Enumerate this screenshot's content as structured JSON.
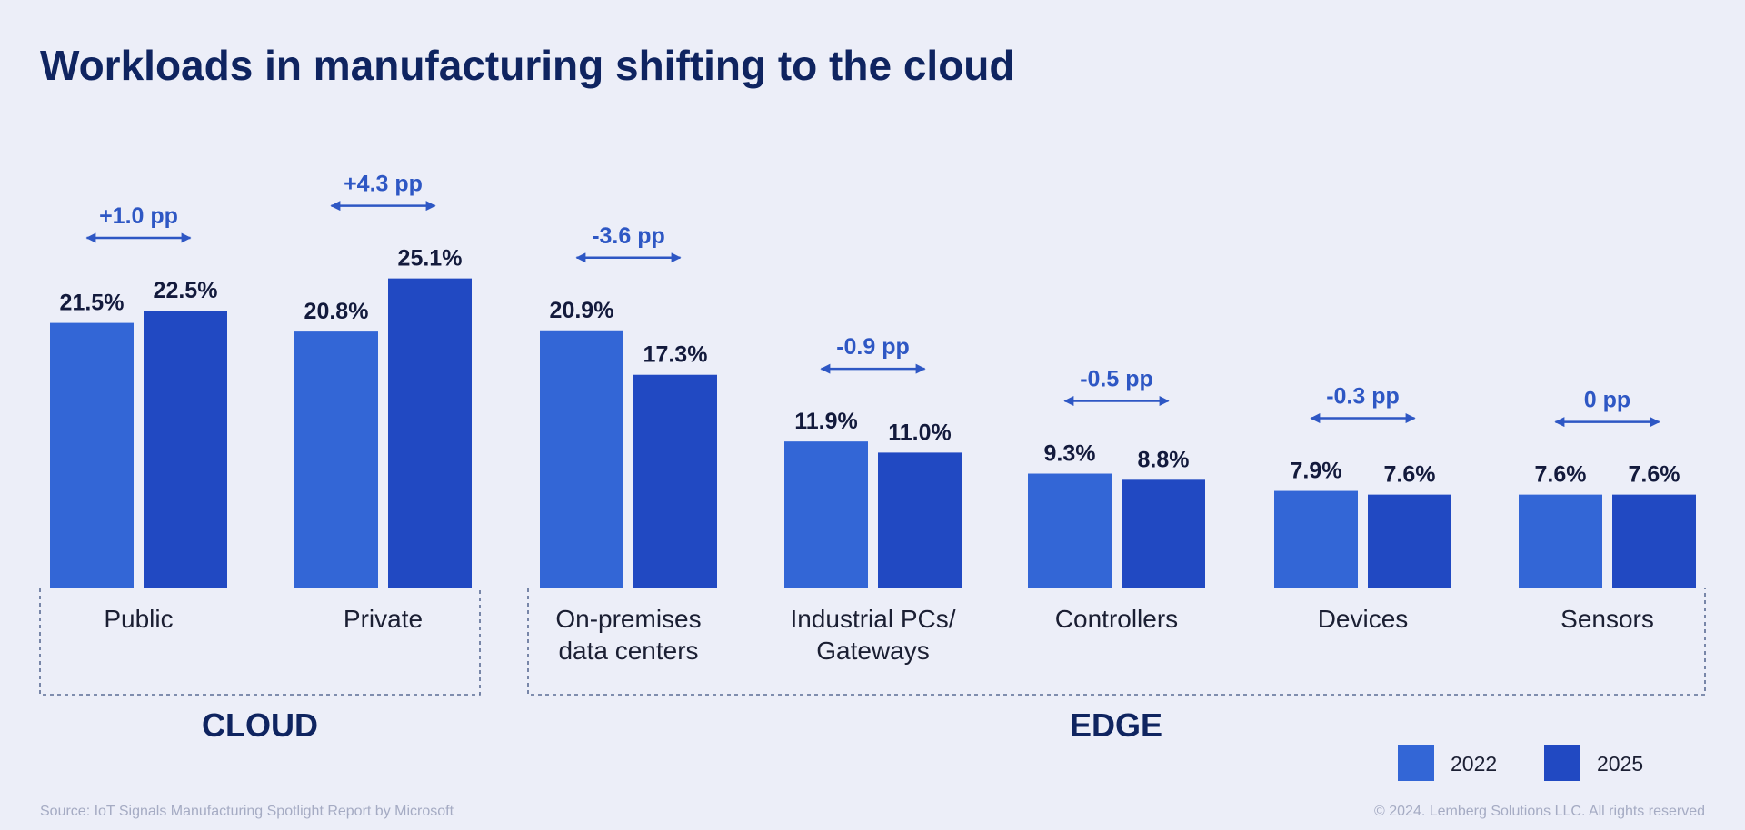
{
  "title": "Workloads in manufacturing shifting to the cloud",
  "colors": {
    "y2022": "#3366d6",
    "y2025": "#2149c2",
    "arrow": "#2e57c4",
    "text": "#131a3c",
    "title": "#0f2460"
  },
  "chart_data": {
    "type": "bar",
    "title": "Workloads in manufacturing shifting to the cloud",
    "categories": [
      [
        "Public"
      ],
      [
        "Private"
      ],
      [
        "On-premises",
        "data centers"
      ],
      [
        "Industrial PCs/",
        "Gateways"
      ],
      [
        "Controllers"
      ],
      [
        "Devices"
      ],
      [
        "Sensors"
      ]
    ],
    "series": [
      {
        "name": "2022",
        "values": [
          21.5,
          20.8,
          20.9,
          11.9,
          9.3,
          7.9,
          7.6
        ]
      },
      {
        "name": "2025",
        "values": [
          22.5,
          25.1,
          17.3,
          11.0,
          8.8,
          7.6,
          7.6
        ]
      }
    ],
    "value_labels": [
      [
        "21.5%",
        "22.5%"
      ],
      [
        "20.8%",
        "25.1%"
      ],
      [
        "20.9%",
        "17.3%"
      ],
      [
        "11.9%",
        "11.0%"
      ],
      [
        "9.3%",
        "8.8%"
      ],
      [
        "7.9%",
        "7.6%"
      ],
      [
        "7.6%",
        "7.6%"
      ]
    ],
    "changes": [
      "+1.0 pp",
      "+4.3 pp",
      "-3.6 pp",
      "-0.9 pp",
      "-0.5 pp",
      "-0.3 pp",
      "0 pp"
    ],
    "groups": [
      {
        "label": "CLOUD",
        "categories": [
          0,
          1
        ]
      },
      {
        "label": "EDGE",
        "categories": [
          2,
          3,
          4,
          5,
          6
        ]
      }
    ],
    "xlabel": "",
    "ylabel": "",
    "ylim": [
      0,
      25.1
    ],
    "legend": {
      "position": "bottom-right",
      "entries": [
        "2022",
        "2025"
      ]
    }
  },
  "footer": {
    "source": "Source: IoT Signals Manufacturing Spotlight Report by Microsoft",
    "copyright": "© 2024. Lemberg Solutions LLC. All rights reserved"
  }
}
